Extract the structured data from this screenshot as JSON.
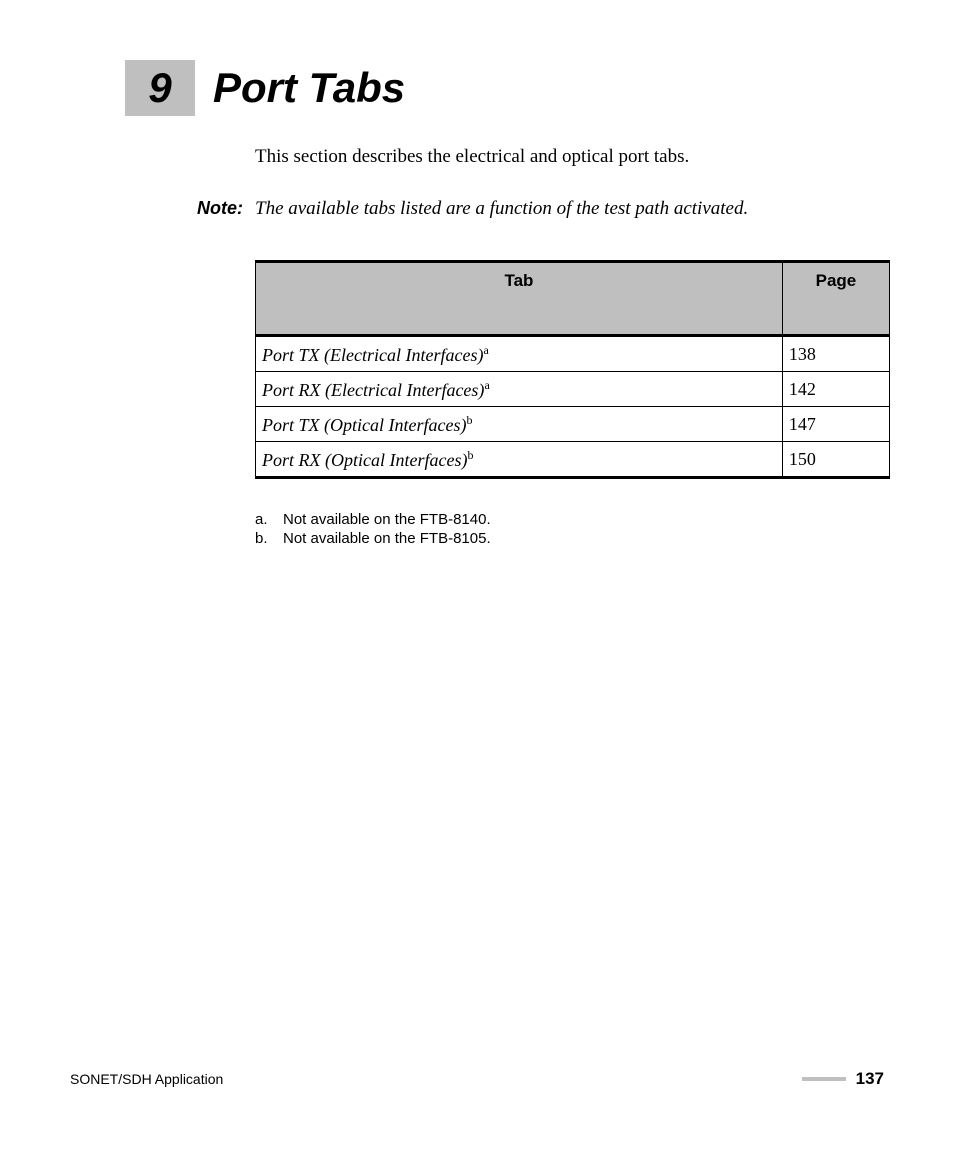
{
  "chapter": {
    "number": "9",
    "title": "Port Tabs",
    "number_box_bg": "#bfbfbf",
    "title_fontsize": 42
  },
  "intro_text": "This section describes the electrical and optical port tabs.",
  "note": {
    "label": "Note:",
    "text": "The available tabs listed are a function of the test path activated."
  },
  "table": {
    "header_bg": "#bfbfbf",
    "border_color": "#000000",
    "columns": [
      "Tab",
      "Page"
    ],
    "rows": [
      {
        "label": "Port TX (Electrical Interfaces)",
        "sup": "a",
        "page": "138"
      },
      {
        "label": "Port RX (Electrical Interfaces)",
        "sup": "a",
        "page": "142"
      },
      {
        "label": "Port TX (Optical Interfaces)",
        "sup": "b",
        "page": "147"
      },
      {
        "label": "Port RX (Optical Interfaces)",
        "sup": "b",
        "page": "150"
      }
    ]
  },
  "footnotes": [
    {
      "marker": "a.",
      "text": "Not available on the FTB-8140."
    },
    {
      "marker": "b.",
      "text": "Not available on the FTB-8105."
    }
  ],
  "footer": {
    "left": "SONET/SDH Application",
    "page_number": "137",
    "line_color": "#bfbfbf"
  }
}
